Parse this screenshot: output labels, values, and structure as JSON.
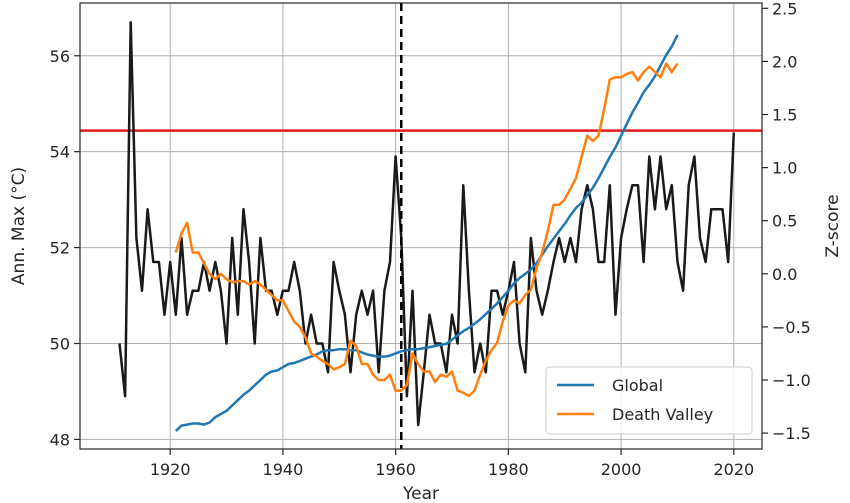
{
  "chart_data": {
    "type": "line",
    "title": "",
    "xlabel": "Year",
    "ylabel_left": "Ann. Max (°C)",
    "ylabel_right": "Z-score",
    "xlim": [
      1904,
      2025
    ],
    "ylim_left": [
      47.8,
      57.1
    ],
    "ylim_right": [
      -1.65,
      2.55
    ],
    "x_ticks": [
      {
        "value": 1920,
        "label": "1920"
      },
      {
        "value": 1940,
        "label": "1940"
      },
      {
        "value": 1960,
        "label": "1960"
      },
      {
        "value": 1980,
        "label": "1980"
      },
      {
        "value": 2000,
        "label": "2000"
      },
      {
        "value": 2020,
        "label": "2020"
      }
    ],
    "y_ticks_left": [
      {
        "value": 48,
        "label": "48"
      },
      {
        "value": 50,
        "label": "50"
      },
      {
        "value": 52,
        "label": "52"
      },
      {
        "value": 54,
        "label": "54"
      },
      {
        "value": 56,
        "label": "56"
      }
    ],
    "y_ticks_right": [
      {
        "value": -1.5,
        "label": "−1.5"
      },
      {
        "value": -1.0,
        "label": "−1.0"
      },
      {
        "value": -0.5,
        "label": "−0.5"
      },
      {
        "value": 0.0,
        "label": "0.0"
      },
      {
        "value": 0.5,
        "label": "0.5"
      },
      {
        "value": 1.0,
        "label": "1.0"
      },
      {
        "value": 1.5,
        "label": "1.5"
      },
      {
        "value": 2.0,
        "label": "2.0"
      },
      {
        "value": 2.5,
        "label": "2.5"
      }
    ],
    "grid": true,
    "legend_position": "bottom-right",
    "reference_lines": [
      {
        "orientation": "horizontal",
        "axis": "left",
        "value": 54.44,
        "color": "#e31a1c",
        "style": "solid"
      },
      {
        "orientation": "vertical",
        "value": 1961,
        "color": "#000000",
        "style": "dashed"
      }
    ],
    "series": [
      {
        "axis": "left",
        "color": "#1a1a1a",
        "x": [
          1911,
          1912,
          1913,
          1914,
          1915,
          1916,
          1917,
          1918,
          1919,
          1920,
          1921,
          1922,
          1923,
          1924,
          1925,
          1926,
          1927,
          1928,
          1929,
          1930,
          1931,
          1932,
          1933,
          1934,
          1935,
          1936,
          1937,
          1938,
          1939,
          1940,
          1941,
          1942,
          1943,
          1944,
          1945,
          1946,
          1947,
          1948,
          1949,
          1950,
          1951,
          1952,
          1953,
          1954,
          1955,
          1956,
          1957,
          1958,
          1959,
          1960,
          1961,
          1962,
          1963,
          1964,
          1965,
          1966,
          1967,
          1968,
          1969,
          1970,
          1971,
          1972,
          1973,
          1974,
          1975,
          1976,
          1977,
          1978,
          1979,
          1980,
          1981,
          1982,
          1983,
          1984,
          1985,
          1986,
          1987,
          1988,
          1989,
          1990,
          1991,
          1992,
          1993,
          1994,
          1995,
          1996,
          1997,
          1998,
          1999,
          2000,
          2001,
          2002,
          2003,
          2004,
          2005,
          2006,
          2007,
          2008,
          2009,
          2010,
          2011,
          2012,
          2013,
          2014,
          2015,
          2016,
          2017,
          2018,
          2019,
          2020
        ],
        "y": [
          50.0,
          48.9,
          56.7,
          52.2,
          51.1,
          52.8,
          51.7,
          51.7,
          50.6,
          51.7,
          50.6,
          52.2,
          50.6,
          51.1,
          51.1,
          51.7,
          51.1,
          51.7,
          51.1,
          50.0,
          52.2,
          50.6,
          52.8,
          51.7,
          50.0,
          52.2,
          51.1,
          51.1,
          50.6,
          51.1,
          51.1,
          51.7,
          51.1,
          50.0,
          50.6,
          50.0,
          50.0,
          49.4,
          51.7,
          51.1,
          50.6,
          49.4,
          50.6,
          51.1,
          50.6,
          51.1,
          49.4,
          51.1,
          51.7,
          53.9,
          52.2,
          48.9,
          51.1,
          48.3,
          49.4,
          50.6,
          50.0,
          50.0,
          49.4,
          50.6,
          50.0,
          53.3,
          51.1,
          49.4,
          50.0,
          49.4,
          51.1,
          51.1,
          50.6,
          51.1,
          51.7,
          50.0,
          49.4,
          52.2,
          51.1,
          50.6,
          51.1,
          51.7,
          52.2,
          51.7,
          52.2,
          51.7,
          52.8,
          53.3,
          52.8,
          51.7,
          51.7,
          53.3,
          50.6,
          52.2,
          52.8,
          53.3,
          53.3,
          51.7,
          53.9,
          52.8,
          53.9,
          52.8,
          53.3,
          51.7,
          51.1,
          53.3,
          53.9,
          52.2,
          51.7,
          52.8,
          52.8,
          52.8,
          51.7,
          54.4
        ]
      },
      {
        "name": "Global",
        "axis": "right",
        "color": "#1f77b4",
        "x": [
          1921,
          1922,
          1923,
          1924,
          1925,
          1926,
          1927,
          1928,
          1929,
          1930,
          1931,
          1932,
          1933,
          1934,
          1935,
          1936,
          1937,
          1938,
          1939,
          1940,
          1941,
          1942,
          1943,
          1944,
          1945,
          1946,
          1947,
          1948,
          1949,
          1950,
          1951,
          1952,
          1953,
          1954,
          1955,
          1956,
          1957,
          1958,
          1959,
          1960,
          1961,
          1962,
          1963,
          1964,
          1965,
          1966,
          1967,
          1968,
          1969,
          1970,
          1971,
          1972,
          1973,
          1974,
          1975,
          1976,
          1977,
          1978,
          1979,
          1980,
          1981,
          1982,
          1983,
          1984,
          1985,
          1986,
          1987,
          1988,
          1989,
          1990,
          1991,
          1992,
          1993,
          1994,
          1995,
          1996,
          1997,
          1998,
          1999,
          2000,
          2001,
          2002,
          2003,
          2004,
          2005,
          2006,
          2007,
          2008,
          2009,
          2010
        ],
        "y": [
          -1.48,
          -1.43,
          -1.42,
          -1.41,
          -1.41,
          -1.42,
          -1.4,
          -1.35,
          -1.32,
          -1.29,
          -1.24,
          -1.19,
          -1.14,
          -1.1,
          -1.05,
          -1.0,
          -0.95,
          -0.92,
          -0.91,
          -0.88,
          -0.85,
          -0.84,
          -0.82,
          -0.8,
          -0.78,
          -0.76,
          -0.73,
          -0.72,
          -0.72,
          -0.71,
          -0.71,
          -0.72,
          -0.72,
          -0.74,
          -0.76,
          -0.77,
          -0.78,
          -0.78,
          -0.77,
          -0.75,
          -0.73,
          -0.72,
          -0.71,
          -0.71,
          -0.7,
          -0.69,
          -0.68,
          -0.67,
          -0.66,
          -0.62,
          -0.58,
          -0.54,
          -0.51,
          -0.47,
          -0.43,
          -0.38,
          -0.33,
          -0.28,
          -0.22,
          -0.16,
          -0.09,
          -0.04,
          0.0,
          0.04,
          0.1,
          0.18,
          0.26,
          0.33,
          0.4,
          0.47,
          0.55,
          0.62,
          0.67,
          0.74,
          0.81,
          0.9,
          1.0,
          1.1,
          1.19,
          1.3,
          1.41,
          1.52,
          1.61,
          1.71,
          1.78,
          1.86,
          1.96,
          2.06,
          2.14,
          2.25
        ]
      },
      {
        "name": "Death Valley",
        "axis": "right",
        "color": "#ff7f0e",
        "x": [
          1921,
          1922,
          1923,
          1924,
          1925,
          1926,
          1927,
          1928,
          1929,
          1930,
          1931,
          1932,
          1933,
          1934,
          1935,
          1936,
          1937,
          1938,
          1939,
          1940,
          1941,
          1942,
          1943,
          1944,
          1945,
          1946,
          1947,
          1948,
          1949,
          1950,
          1951,
          1952,
          1953,
          1954,
          1955,
          1956,
          1957,
          1958,
          1959,
          1960,
          1961,
          1962,
          1963,
          1964,
          1965,
          1966,
          1967,
          1968,
          1969,
          1970,
          1971,
          1972,
          1973,
          1974,
          1975,
          1976,
          1977,
          1978,
          1979,
          1980,
          1981,
          1982,
          1983,
          1984,
          1985,
          1986,
          1987,
          1988,
          1989,
          1990,
          1991,
          1992,
          1993,
          1994,
          1995,
          1996,
          1997,
          1998,
          1999,
          2000,
          2001,
          2002,
          2003,
          2004,
          2005,
          2006,
          2007,
          2008,
          2009,
          2010
        ],
        "y": [
          0.2,
          0.38,
          0.48,
          0.2,
          0.2,
          0.1,
          0.0,
          -0.05,
          0.0,
          -0.05,
          -0.08,
          -0.07,
          -0.07,
          -0.1,
          -0.07,
          -0.1,
          -0.15,
          -0.2,
          -0.25,
          -0.25,
          -0.35,
          -0.45,
          -0.5,
          -0.6,
          -0.75,
          -0.78,
          -0.82,
          -0.85,
          -0.9,
          -0.88,
          -0.85,
          -0.63,
          -0.68,
          -0.85,
          -0.85,
          -0.95,
          -1.0,
          -1.0,
          -0.95,
          -1.1,
          -1.1,
          -1.05,
          -0.75,
          -0.85,
          -0.92,
          -0.92,
          -1.02,
          -0.95,
          -0.97,
          -0.92,
          -1.1,
          -1.12,
          -1.15,
          -1.1,
          -0.95,
          -0.82,
          -0.72,
          -0.65,
          -0.45,
          -0.3,
          -0.25,
          -0.28,
          -0.2,
          -0.15,
          0.05,
          0.2,
          0.4,
          0.65,
          0.65,
          0.7,
          0.8,
          0.9,
          1.1,
          1.3,
          1.25,
          1.3,
          1.55,
          1.83,
          1.85,
          1.85,
          1.88,
          1.9,
          1.82,
          1.9,
          1.95,
          1.9,
          1.85,
          1.98,
          1.9,
          1.98
        ]
      }
    ]
  }
}
